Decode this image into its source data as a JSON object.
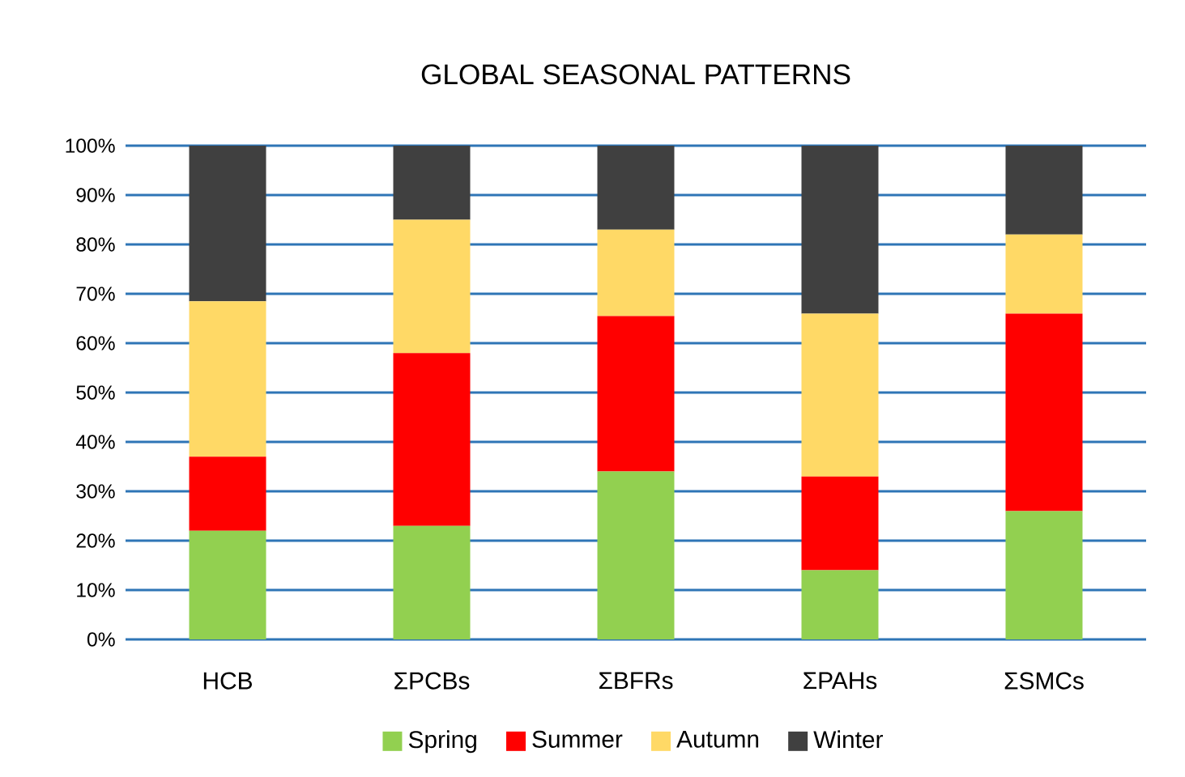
{
  "chart_data": {
    "type": "bar",
    "stacked": true,
    "title": "GLOBAL SEASONAL PATTERNS",
    "categories": [
      "HCB",
      "ΣPCBs",
      "ΣBFRs",
      "ΣPAHs",
      "ΣSMCs"
    ],
    "series": [
      {
        "name": "Spring",
        "color": "#92d050",
        "values": [
          22,
          23,
          34,
          14,
          26
        ]
      },
      {
        "name": "Summer",
        "color": "#ff0000",
        "values": [
          15,
          35,
          31.5,
          19,
          40
        ]
      },
      {
        "name": "Autumn",
        "color": "#ffd966",
        "values": [
          31.5,
          27,
          17.5,
          33,
          16
        ]
      },
      {
        "name": "Winter",
        "color": "#404040",
        "values": [
          31.5,
          15,
          17,
          34,
          18
        ]
      }
    ],
    "ylim": [
      0,
      100
    ],
    "yticks": [
      {
        "value": 0,
        "label": "0%"
      },
      {
        "value": 10,
        "label": "10%"
      },
      {
        "value": 20,
        "label": "20%"
      },
      {
        "value": 30,
        "label": "30%"
      },
      {
        "value": 40,
        "label": "40%"
      },
      {
        "value": 50,
        "label": "50%"
      },
      {
        "value": 60,
        "label": "60%"
      },
      {
        "value": 70,
        "label": "70%"
      },
      {
        "value": 80,
        "label": "80%"
      },
      {
        "value": 90,
        "label": "90%"
      },
      {
        "value": 100,
        "label": "100%"
      }
    ],
    "grid": "y",
    "legend": "bottom"
  }
}
